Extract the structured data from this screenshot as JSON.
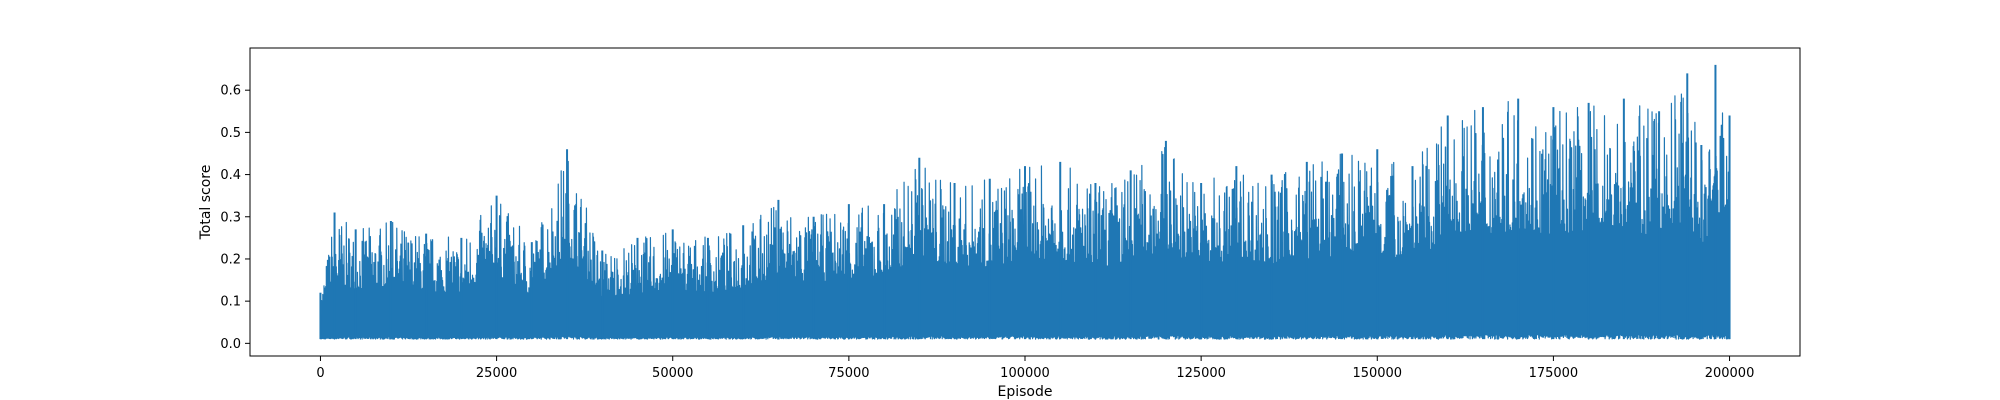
{
  "chart_data": {
    "type": "line",
    "title": "",
    "xlabel": "Episode",
    "ylabel": "Total score",
    "xlim": [
      -10000,
      210000
    ],
    "ylim": [
      -0.03,
      0.7
    ],
    "x_ticks": [
      0,
      25000,
      50000,
      75000,
      100000,
      125000,
      150000,
      175000,
      200000
    ],
    "x_tick_labels": [
      "0",
      "25000",
      "50000",
      "75000",
      "100000",
      "125000",
      "150000",
      "175000",
      "200000"
    ],
    "y_ticks": [
      0.0,
      0.1,
      0.2,
      0.3,
      0.4,
      0.5,
      0.6
    ],
    "y_tick_labels": [
      "0.0",
      "0.1",
      "0.2",
      "0.3",
      "0.4",
      "0.5",
      "0.6"
    ],
    "grid": false,
    "legend": "none",
    "series": [
      {
        "color": "#1f77b4",
        "x": [
          0,
          2000,
          5000,
          10000,
          15000,
          20000,
          25000,
          30000,
          35000,
          40000,
          45000,
          50000,
          55000,
          60000,
          65000,
          70000,
          75000,
          80000,
          85000,
          90000,
          95000,
          100000,
          105000,
          110000,
          115000,
          120000,
          125000,
          130000,
          135000,
          140000,
          145000,
          150000,
          155000,
          160000,
          165000,
          170000,
          175000,
          180000,
          185000,
          190000,
          194000,
          196000,
          198000,
          200000
        ],
        "y_max": [
          0.12,
          0.31,
          0.27,
          0.29,
          0.26,
          0.25,
          0.35,
          0.24,
          0.46,
          0.22,
          0.25,
          0.27,
          0.25,
          0.28,
          0.34,
          0.3,
          0.33,
          0.33,
          0.44,
          0.38,
          0.39,
          0.42,
          0.43,
          0.38,
          0.41,
          0.48,
          0.38,
          0.42,
          0.4,
          0.43,
          0.45,
          0.46,
          0.42,
          0.54,
          0.56,
          0.58,
          0.56,
          0.57,
          0.58,
          0.55,
          0.64,
          0.47,
          0.66,
          0.54
        ],
        "y_min": [
          0.01,
          0.01,
          0.01,
          0.01,
          0.01,
          0.01,
          0.01,
          0.01,
          0.01,
          0.01,
          0.01,
          0.01,
          0.01,
          0.01,
          0.01,
          0.01,
          0.01,
          0.01,
          0.01,
          0.01,
          0.01,
          0.01,
          0.01,
          0.01,
          0.01,
          0.01,
          0.01,
          0.01,
          0.01,
          0.01,
          0.01,
          0.01,
          0.01,
          0.01,
          0.01,
          0.01,
          0.01,
          0.01,
          0.01,
          0.01,
          0.01,
          0.01,
          0.01,
          0.01
        ]
      }
    ]
  }
}
